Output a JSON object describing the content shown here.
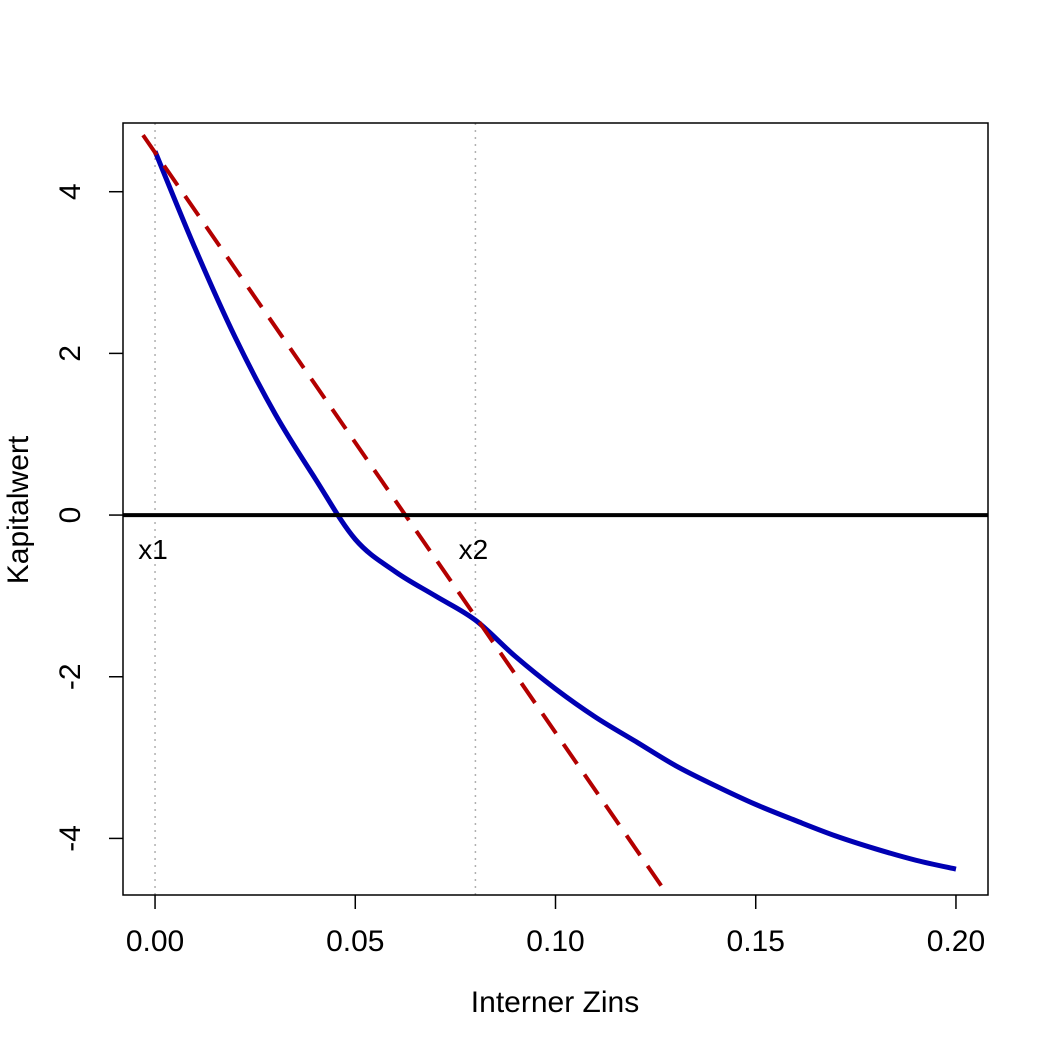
{
  "chart_data": {
    "type": "line",
    "title": "",
    "xlabel": "Interner Zins",
    "ylabel": "Kapitalwert",
    "xlim": [
      -0.008,
      0.208
    ],
    "ylim": [
      -4.7,
      4.85
    ],
    "xticks": [
      0.0,
      0.05,
      0.1,
      0.15,
      0.2
    ],
    "xtick_labels": [
      "0.00",
      "0.05",
      "0.10",
      "0.15",
      "0.20"
    ],
    "yticks": [
      -4,
      -2,
      0,
      2,
      4
    ],
    "ytick_labels": [
      "-4",
      "-2",
      "0",
      "2",
      "4"
    ],
    "grid": false,
    "series": [
      {
        "role": "npv-curve",
        "color": "#0000b3",
        "style": "solid",
        "x": [
          0.0,
          0.01,
          0.02,
          0.03,
          0.04,
          0.05,
          0.06,
          0.07,
          0.08,
          0.09,
          0.1,
          0.11,
          0.12,
          0.13,
          0.14,
          0.15,
          0.16,
          0.17,
          0.18,
          0.19,
          0.2
        ],
        "values": [
          4.5,
          3.3,
          2.2,
          1.25,
          0.45,
          -0.3,
          -0.7,
          -1.0,
          -1.3,
          -1.75,
          -2.15,
          -2.5,
          -2.8,
          -3.1,
          -3.35,
          -3.58,
          -3.78,
          -3.97,
          -4.13,
          -4.27,
          -4.38
        ]
      },
      {
        "role": "secant-line",
        "color": "#b30000",
        "style": "dashed",
        "x": [
          -0.003,
          0.128
        ],
        "values": [
          4.7,
          -4.7
        ]
      },
      {
        "role": "zero-line",
        "color": "#000000",
        "style": "solid",
        "x": [
          -0.008,
          0.208
        ],
        "values": [
          0,
          0
        ]
      }
    ],
    "vlines": [
      {
        "x": 0.0,
        "label": "x1",
        "color": "#b0b0b0",
        "style": "dotted"
      },
      {
        "x": 0.08,
        "label": "x2",
        "color": "#b0b0b0",
        "style": "dotted"
      }
    ]
  }
}
